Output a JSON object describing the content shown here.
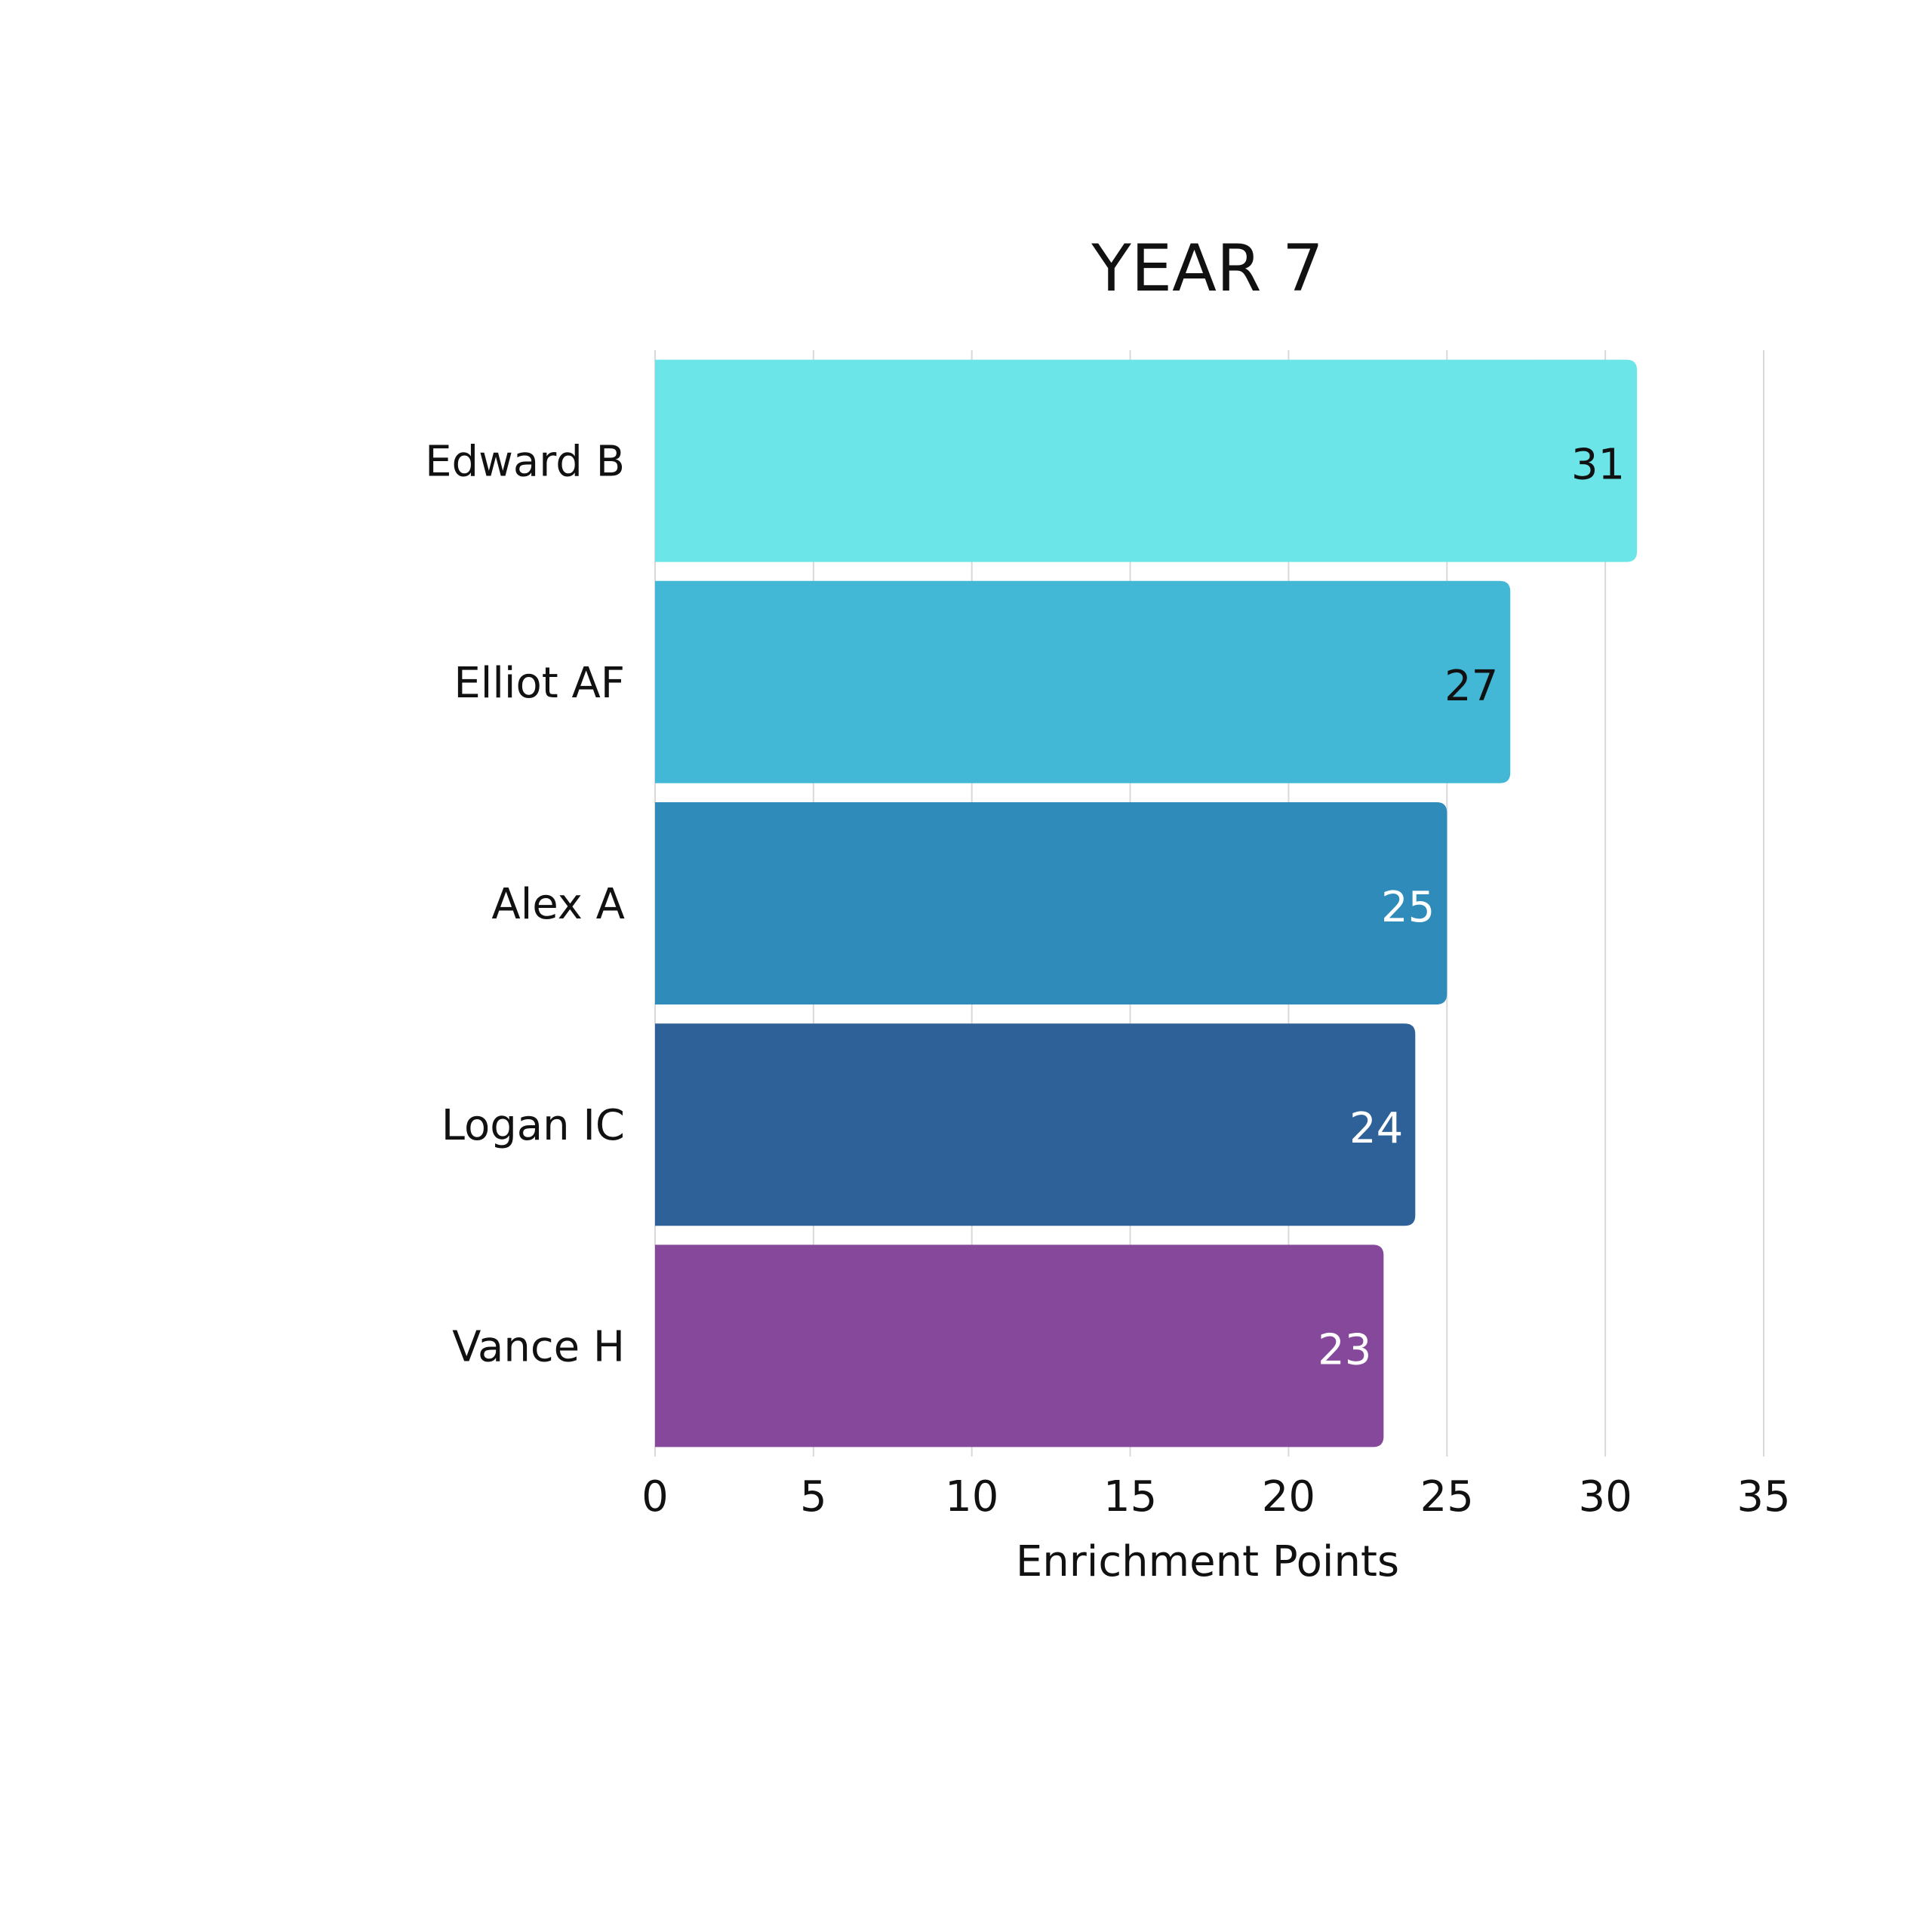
{
  "chart_data": {
    "type": "bar",
    "orientation": "horizontal",
    "title": "YEAR 7",
    "xlabel": "Enrichment Points",
    "ylabel": "",
    "categories": [
      "Edward B",
      "Elliot AF",
      "Alex A",
      "Logan IC",
      "Vance H"
    ],
    "values": [
      31,
      27,
      25,
      24,
      23
    ],
    "xlim": [
      0,
      35
    ],
    "x_ticks": [
      "0",
      "5",
      "10",
      "15",
      "20",
      "25",
      "30",
      "35"
    ],
    "data_labels": [
      "31",
      "27",
      "25",
      "24",
      "23"
    ],
    "bar_colors": [
      "#6be5e8",
      "#43b8d6",
      "#2e8bba",
      "#2f6199",
      "#86489a"
    ],
    "data_label_colors": [
      "#111111",
      "#111111",
      "#ffffff",
      "#ffffff",
      "#ffffff"
    ],
    "grid": "vertical",
    "legend": "none"
  }
}
